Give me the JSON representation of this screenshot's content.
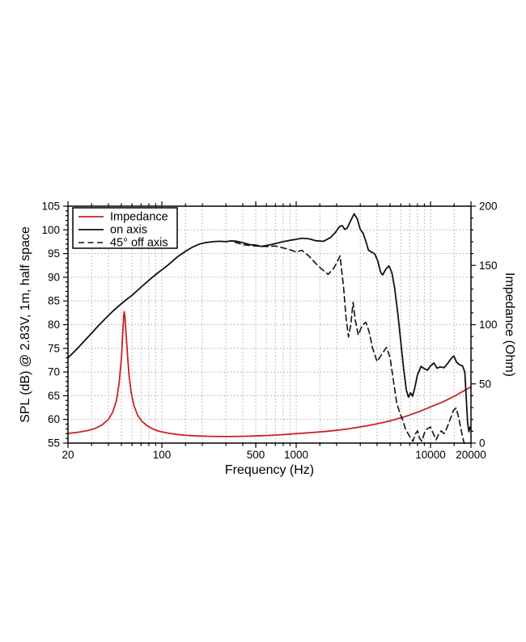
{
  "chart_data": {
    "type": "line",
    "title": "",
    "xlabel": "Frequency (Hz)",
    "ylabel_left": "SPL (dB) @ 2.83V, 1m, half space",
    "ylabel_right": "Impedance (Ohm)",
    "x_scale": "log",
    "x_range": [
      20,
      20000
    ],
    "y_left_range": [
      55,
      105
    ],
    "y_right_range": [
      0,
      200
    ],
    "x_ticks_labeled": [
      20,
      100,
      500,
      1000,
      10000,
      20000
    ],
    "x_grid_minor": [
      30,
      40,
      50,
      60,
      70,
      80,
      90,
      150,
      200,
      300,
      400,
      500,
      600,
      700,
      800,
      900,
      1500,
      2000,
      3000,
      4000,
      5000,
      6000,
      7000,
      8000,
      9000,
      15000
    ],
    "x_grid_decades": [
      100,
      1000,
      10000
    ],
    "y_left_ticks": [
      55,
      60,
      65,
      70,
      75,
      80,
      85,
      90,
      95,
      100,
      105
    ],
    "y_left_minor_step": 1,
    "y_right_ticks": [
      0,
      50,
      100,
      150,
      200
    ],
    "y_right_minor_step": 10,
    "grid": "dotted",
    "legend_position": "top-left",
    "colors": {
      "impedance": "#cc2222",
      "spl": "#111111",
      "grid": "#aaaaaa",
      "frame": "#000000"
    },
    "series": [
      {
        "name": "Impedance",
        "axis": "right",
        "style": "solid",
        "color": "#cc2222",
        "points": [
          [
            20,
            8.2
          ],
          [
            24,
            9.2
          ],
          [
            28,
            10.6
          ],
          [
            32,
            12.5
          ],
          [
            36,
            15.5
          ],
          [
            40,
            20
          ],
          [
            43,
            26
          ],
          [
            46,
            36
          ],
          [
            48,
            50
          ],
          [
            50,
            72
          ],
          [
            51,
            90
          ],
          [
            52,
            108
          ],
          [
            52.5,
            111
          ],
          [
            53,
            107
          ],
          [
            54,
            94
          ],
          [
            55.5,
            74
          ],
          [
            57,
            57
          ],
          [
            59,
            43
          ],
          [
            62,
            31.5
          ],
          [
            66,
            23.5
          ],
          [
            71,
            18.5
          ],
          [
            78,
            14.5
          ],
          [
            86,
            11.8
          ],
          [
            95,
            10
          ],
          [
            110,
            8.5
          ],
          [
            130,
            7.3
          ],
          [
            155,
            6.5
          ],
          [
            185,
            6
          ],
          [
            220,
            5.7
          ],
          [
            270,
            5.5
          ],
          [
            330,
            5.5
          ],
          [
            400,
            5.7
          ],
          [
            500,
            6
          ],
          [
            630,
            6.5
          ],
          [
            800,
            7.2
          ],
          [
            1000,
            8
          ],
          [
            1300,
            8.9
          ],
          [
            1600,
            9.7
          ],
          [
            2000,
            10.8
          ],
          [
            2500,
            12.2
          ],
          [
            3200,
            14.2
          ],
          [
            4000,
            16.3
          ],
          [
            5000,
            18.8
          ],
          [
            6300,
            22
          ],
          [
            8000,
            26
          ],
          [
            10000,
            30.5
          ],
          [
            12500,
            35
          ],
          [
            15000,
            39.5
          ],
          [
            17500,
            43.8
          ],
          [
            20000,
            47.5
          ]
        ]
      },
      {
        "name": "on axis",
        "axis": "left",
        "style": "solid",
        "color": "#111111",
        "points": [
          [
            20,
            73
          ],
          [
            23,
            74.7
          ],
          [
            26,
            76.3
          ],
          [
            30,
            78.2
          ],
          [
            34,
            79.9
          ],
          [
            38,
            81.3
          ],
          [
            43,
            82.8
          ],
          [
            48,
            84
          ],
          [
            54,
            85.2
          ],
          [
            60,
            86.2
          ],
          [
            68,
            87.6
          ],
          [
            76,
            88.8
          ],
          [
            85,
            90
          ],
          [
            95,
            91.1
          ],
          [
            105,
            92
          ],
          [
            118,
            93.2
          ],
          [
            132,
            94.4
          ],
          [
            150,
            95.5
          ],
          [
            170,
            96.4
          ],
          [
            190,
            97
          ],
          [
            210,
            97.3
          ],
          [
            240,
            97.5
          ],
          [
            270,
            97.6
          ],
          [
            300,
            97.5
          ],
          [
            330,
            97.7
          ],
          [
            360,
            97.6
          ],
          [
            400,
            97.3
          ],
          [
            450,
            96.9
          ],
          [
            500,
            96.8
          ],
          [
            550,
            96.5
          ],
          [
            600,
            96.7
          ],
          [
            650,
            96.9
          ],
          [
            700,
            97.1
          ],
          [
            800,
            97.5
          ],
          [
            900,
            97.8
          ],
          [
            1000,
            98
          ],
          [
            1100,
            98.25
          ],
          [
            1250,
            98.1
          ],
          [
            1400,
            97.7
          ],
          [
            1600,
            97.6
          ],
          [
            1800,
            98.4
          ],
          [
            1950,
            99.4
          ],
          [
            2100,
            100.7
          ],
          [
            2200,
            100.9
          ],
          [
            2300,
            100.1
          ],
          [
            2400,
            100.4
          ],
          [
            2550,
            102
          ],
          [
            2700,
            103.4
          ],
          [
            2850,
            102.3
          ],
          [
            3000,
            100.1
          ],
          [
            3150,
            99.3
          ],
          [
            3300,
            97.6
          ],
          [
            3450,
            95.7
          ],
          [
            3650,
            95.3
          ],
          [
            3850,
            94.9
          ],
          [
            4050,
            93.4
          ],
          [
            4250,
            91.1
          ],
          [
            4400,
            90.5
          ],
          [
            4650,
            91.7
          ],
          [
            4900,
            92.4
          ],
          [
            5150,
            91
          ],
          [
            5400,
            87.8
          ],
          [
            5700,
            82.5
          ],
          [
            6000,
            76.5
          ],
          [
            6300,
            70.8
          ],
          [
            6600,
            66.2
          ],
          [
            6850,
            64.7
          ],
          [
            7100,
            65.6
          ],
          [
            7350,
            64.9
          ],
          [
            7600,
            66.4
          ],
          [
            8000,
            69.4
          ],
          [
            8500,
            71.2
          ],
          [
            9000,
            70.7
          ],
          [
            9500,
            70.4
          ],
          [
            10000,
            71.3
          ],
          [
            10600,
            71.9
          ],
          [
            11200,
            70.8
          ],
          [
            11800,
            71.1
          ],
          [
            12600,
            70.9
          ],
          [
            13400,
            71.8
          ],
          [
            14200,
            72.8
          ],
          [
            14900,
            73.4
          ],
          [
            15600,
            72.1
          ],
          [
            16500,
            71.5
          ],
          [
            17300,
            71.3
          ],
          [
            18000,
            70
          ],
          [
            18400,
            65
          ],
          [
            18900,
            59.3
          ],
          [
            19300,
            57.4
          ],
          [
            19700,
            58.4
          ],
          [
            20000,
            57.9
          ]
        ]
      },
      {
        "name": "45° off axis",
        "axis": "left",
        "style": "dashed",
        "color": "#111111",
        "points": [
          [
            350,
            97.4
          ],
          [
            400,
            96.9
          ],
          [
            450,
            96.7
          ],
          [
            500,
            96.6
          ],
          [
            560,
            96.5
          ],
          [
            630,
            96.5
          ],
          [
            700,
            96.6
          ],
          [
            800,
            96.2
          ],
          [
            900,
            95.8
          ],
          [
            1000,
            95.3
          ],
          [
            1100,
            95.7
          ],
          [
            1230,
            94.6
          ],
          [
            1400,
            92.9
          ],
          [
            1550,
            91.7
          ],
          [
            1730,
            90.6
          ],
          [
            1900,
            91.9
          ],
          [
            2000,
            93
          ],
          [
            2120,
            94.5
          ],
          [
            2250,
            88
          ],
          [
            2350,
            81.5
          ],
          [
            2450,
            77.4
          ],
          [
            2550,
            80
          ],
          [
            2650,
            84.7
          ],
          [
            2750,
            81
          ],
          [
            2900,
            77.8
          ],
          [
            3100,
            79.9
          ],
          [
            3300,
            80.5
          ],
          [
            3500,
            78.4
          ],
          [
            3700,
            75
          ],
          [
            4000,
            72.2
          ],
          [
            4300,
            73.6
          ],
          [
            4700,
            75.2
          ],
          [
            5000,
            73
          ],
          [
            5300,
            68
          ],
          [
            5600,
            63.5
          ],
          [
            5900,
            61.4
          ],
          [
            6200,
            59.9
          ],
          [
            6500,
            58
          ],
          [
            7000,
            56.4
          ],
          [
            7400,
            55.4
          ],
          [
            7700,
            56.9
          ],
          [
            8000,
            57.6
          ],
          [
            8300,
            56
          ],
          [
            8600,
            55.4
          ],
          [
            9000,
            57.1
          ],
          [
            9400,
            58
          ],
          [
            10000,
            58.4
          ],
          [
            10500,
            57
          ],
          [
            11000,
            55.7
          ],
          [
            11500,
            56.9
          ],
          [
            12000,
            57.6
          ],
          [
            12600,
            57
          ],
          [
            13200,
            58.1
          ],
          [
            14000,
            60
          ],
          [
            14800,
            61.9
          ],
          [
            15500,
            62.4
          ],
          [
            16200,
            60.4
          ],
          [
            17000,
            57.4
          ],
          [
            17700,
            55.2
          ],
          [
            18100,
            54.6
          ]
        ]
      }
    ]
  },
  "legend": {
    "items": [
      {
        "label": "Impedance"
      },
      {
        "label": "on axis"
      },
      {
        "label": "45° off axis"
      }
    ]
  }
}
